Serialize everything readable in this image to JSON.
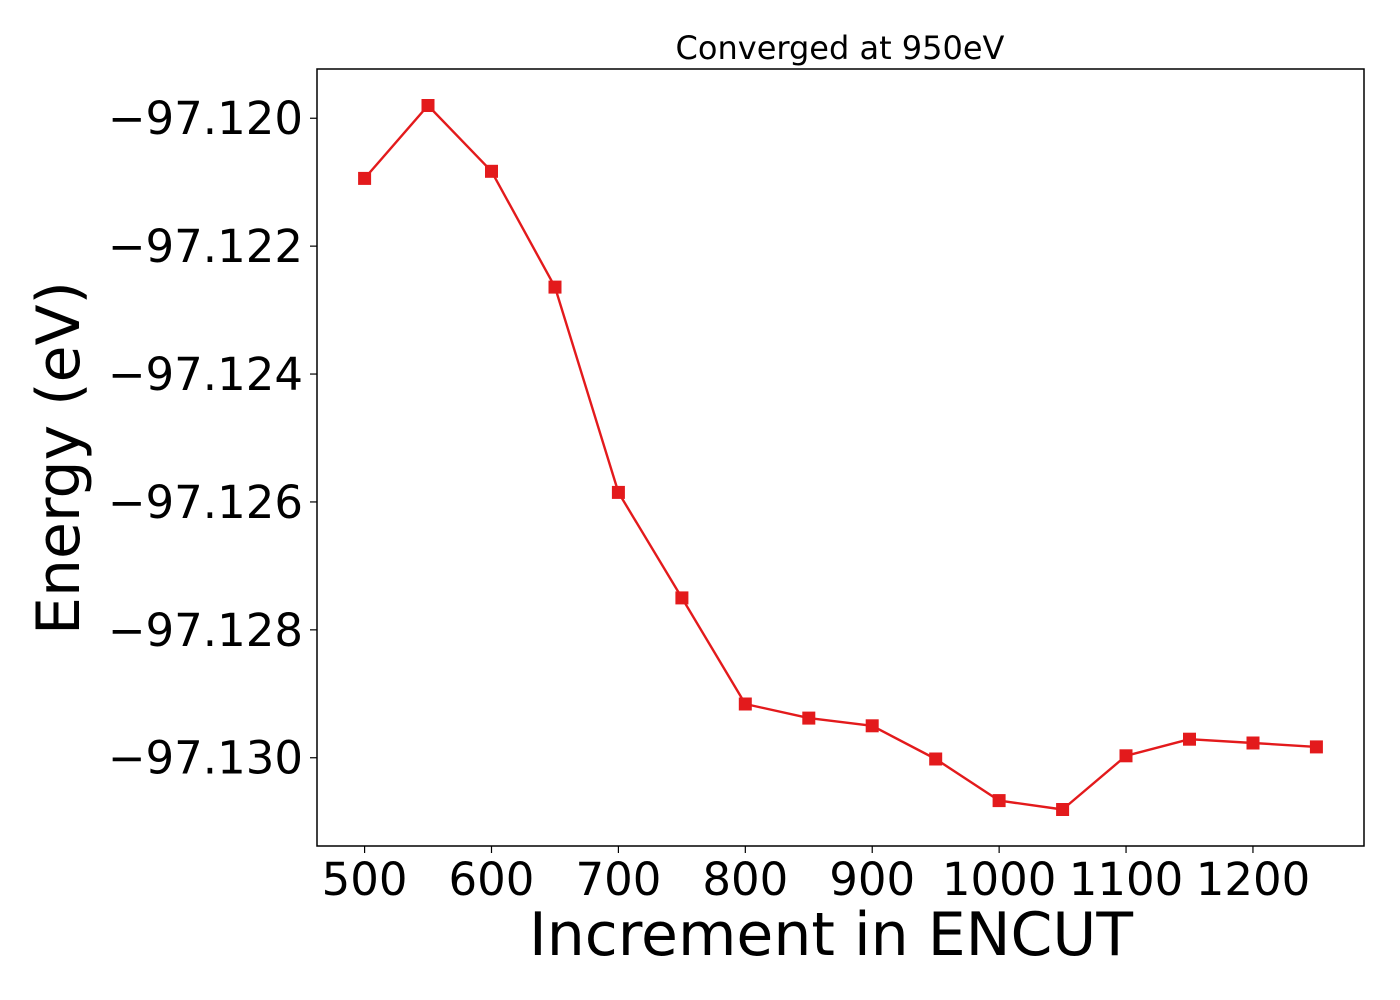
{
  "chart_data": {
    "type": "line",
    "title": "Converged at 950eV",
    "xlabel": "Increment in ENCUT",
    "ylabel": "Energy (eV)",
    "x": [
      500,
      550,
      600,
      650,
      700,
      750,
      800,
      850,
      900,
      950,
      1000,
      1050,
      1100,
      1150,
      1200,
      1250
    ],
    "series": [
      {
        "values": [
          -97.12094,
          -97.1198,
          -97.12083,
          -97.12264,
          -97.12585,
          -97.1275,
          -97.12916,
          -97.12938,
          -97.1295,
          -97.13002,
          -97.13067,
          -97.13081,
          -97.12997,
          -97.12971,
          -97.12977,
          -97.12983
        ],
        "color": "#e31a1c",
        "marker": "square"
      }
    ],
    "xlim": [
      462.5,
      1287.5
    ],
    "ylim": [
      -97.13138,
      -97.11923
    ],
    "xticks": [
      500,
      600,
      700,
      800,
      900,
      1000,
      1100,
      1200
    ],
    "xtick_labels": [
      "500",
      "600",
      "700",
      "800",
      "900",
      "1000",
      "1100",
      "1200"
    ],
    "yticks": [
      -97.12,
      -97.122,
      -97.124,
      -97.126,
      -97.128,
      -97.13
    ],
    "ytick_labels": [
      "−97.120",
      "−97.122",
      "−97.124",
      "−97.126",
      "−97.128",
      "−97.130"
    ],
    "grid": false,
    "legend": false
  }
}
